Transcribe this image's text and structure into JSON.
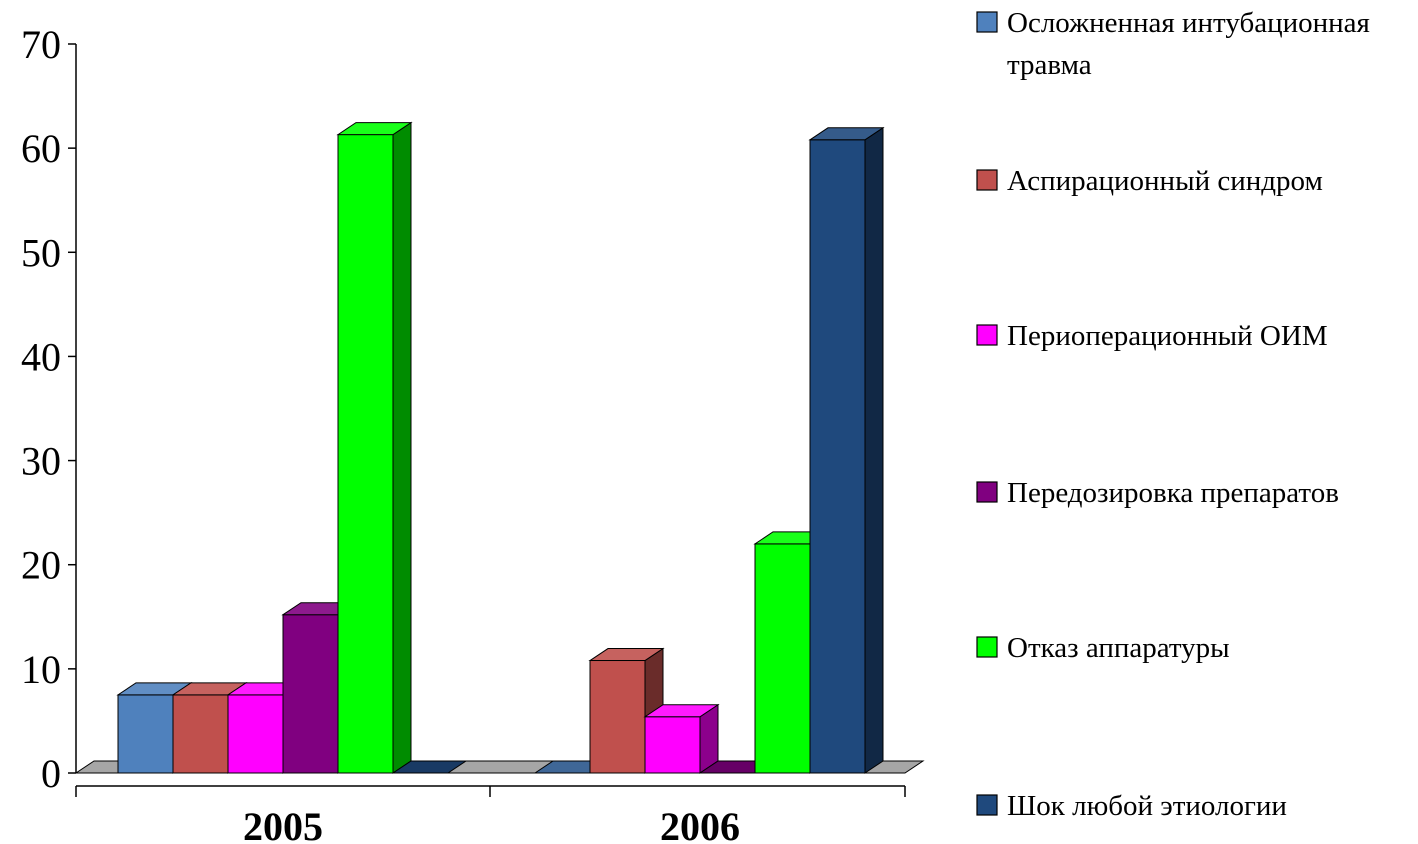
{
  "chart_data": {
    "type": "bar",
    "categories": [
      "2005",
      "2006"
    ],
    "series": [
      {
        "name": "Осложненная интубационная травма",
        "values": [
          7.5,
          0
        ],
        "color": "#4f81bd"
      },
      {
        "name": "Аспирационный синдром",
        "values": [
          7.5,
          10.8
        ],
        "color": "#c0504d"
      },
      {
        "name": "Периоперационный ОИМ",
        "values": [
          7.5,
          5.4
        ],
        "color": "#ff00ff"
      },
      {
        "name": "Передозировка препаратов",
        "values": [
          15.2,
          0
        ],
        "color": "#800080"
      },
      {
        "name": "Отказ аппаратуры",
        "values": [
          61.3,
          22
        ],
        "color": "#00ff00"
      },
      {
        "name": "Шок любой этиологии",
        "values": [
          0,
          60.8
        ],
        "color": "#1f497d"
      }
    ],
    "legend_lines": [
      [
        "Осложненная интубационная",
        "травма"
      ],
      [
        "Аспирационный синдром"
      ],
      [
        "Периоперационный ОИМ"
      ],
      [
        "Передозировка препаратов"
      ],
      [
        "Отказ аппаратуры"
      ],
      [
        "Шок любой этиологии"
      ]
    ],
    "y_ticks": [
      "0",
      "10",
      "20",
      "30",
      "40",
      "50",
      "60",
      "70"
    ],
    "ylim": [
      0,
      70
    ],
    "grid": false,
    "legend_position": "right",
    "style": "3d-clustered-column"
  }
}
